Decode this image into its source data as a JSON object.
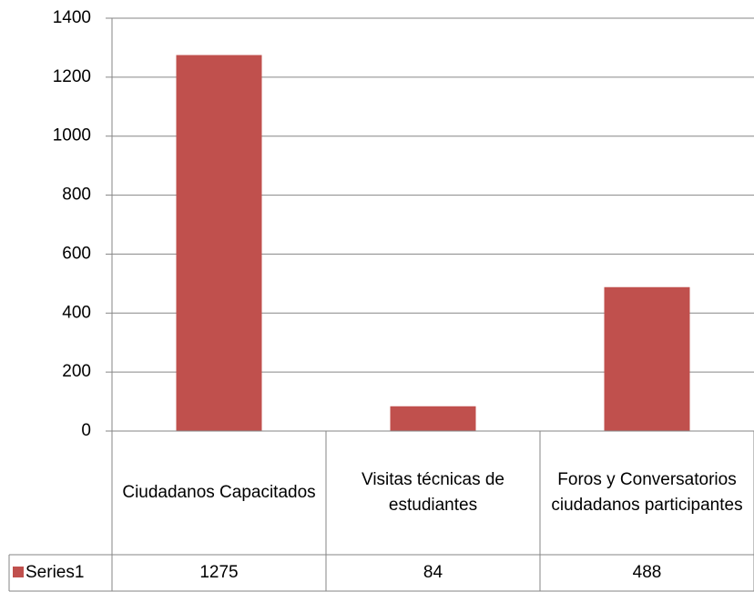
{
  "chart_data": {
    "type": "bar",
    "categories": [
      "Ciudadanos Capacitados",
      "Visitas técnicas de estudiantes",
      "Foros y Conversatorios ciudadanos participantes"
    ],
    "series": [
      {
        "name": "Series1",
        "color": "#c0504d",
        "values": [
          1275,
          84,
          488
        ]
      }
    ],
    "ylim": [
      0,
      1400
    ],
    "yticks": [
      0,
      200,
      400,
      600,
      800,
      1000,
      1200,
      1400
    ],
    "grid": true,
    "data_table": true
  }
}
